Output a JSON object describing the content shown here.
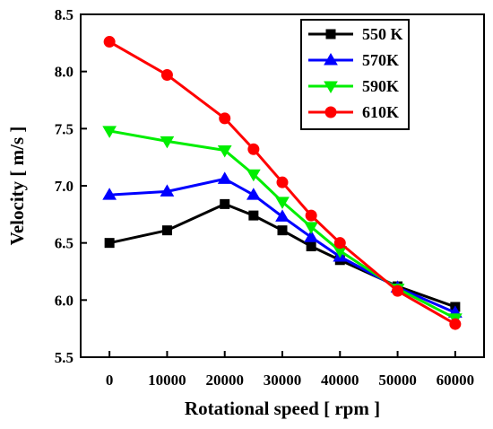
{
  "chart_data": {
    "type": "line",
    "xlabel": "Rotational speed [ rpm ]",
    "ylabel": "Velocity [ m/s ]",
    "x": [
      0,
      10000,
      20000,
      25000,
      30000,
      35000,
      40000,
      50000,
      60000
    ],
    "x_ticks": [
      0,
      10000,
      20000,
      30000,
      40000,
      50000,
      60000
    ],
    "x_tick_labels": [
      "0",
      "10000",
      "20000",
      "30000",
      "40000",
      "50000",
      "60000"
    ],
    "xlim": [
      -5000,
      65000
    ],
    "ylim": [
      5.5,
      8.5
    ],
    "y_ticks": [
      5.5,
      6.0,
      6.5,
      7.0,
      7.5,
      8.0,
      8.5
    ],
    "y_tick_labels": [
      "5.5",
      "6.0",
      "6.5",
      "7.0",
      "7.5",
      "8.0",
      "8.5"
    ],
    "grid": false,
    "legend_position": "top-right",
    "series": [
      {
        "name": "550 K",
        "color": "#000000",
        "marker": "square",
        "values": [
          6.5,
          6.61,
          6.84,
          6.74,
          6.61,
          6.47,
          6.35,
          6.12,
          5.94
        ]
      },
      {
        "name": "570K",
        "color": "#0000ff",
        "marker": "triangle-up",
        "values": [
          6.92,
          6.95,
          7.06,
          6.92,
          6.73,
          6.55,
          6.38,
          6.11,
          5.89
        ]
      },
      {
        "name": "590K",
        "color": "#00ee00",
        "marker": "triangle-down",
        "values": [
          7.48,
          7.39,
          7.31,
          7.1,
          6.86,
          6.64,
          6.43,
          6.1,
          5.84
        ]
      },
      {
        "name": "610K",
        "color": "#ff0000",
        "marker": "circle",
        "values": [
          8.26,
          7.97,
          7.59,
          7.32,
          7.03,
          6.74,
          6.5,
          6.08,
          5.79
        ]
      }
    ]
  }
}
